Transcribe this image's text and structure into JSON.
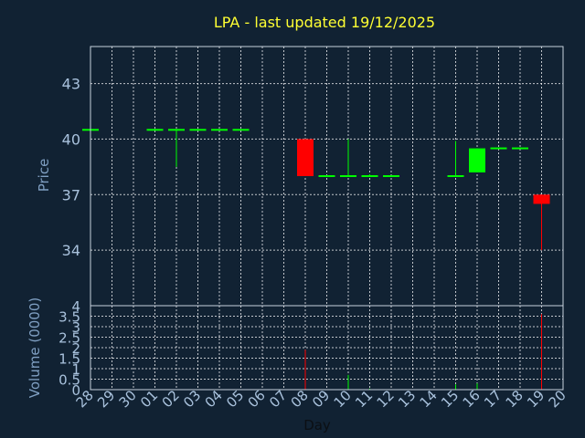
{
  "chart_data": {
    "type": "candlestick",
    "title": "LPA - last updated 19/12/2025",
    "price_panel": {
      "ylabel": "Price",
      "ylim": [
        31,
        45
      ],
      "yticks": [
        34,
        37,
        40,
        43
      ]
    },
    "volume_panel": {
      "ylabel": "Volume (0000)",
      "ylim": [
        0,
        4
      ],
      "yticks": [
        0,
        0.5,
        1,
        1.5,
        2,
        2.5,
        3,
        3.5,
        4
      ],
      "ytick_labels": [
        "0",
        "0.5",
        "1",
        "1.5",
        "2",
        "2.5",
        "3",
        "3.5",
        "4"
      ]
    },
    "xlabel": "Day",
    "x_labels": [
      "28",
      "29",
      "30",
      "01",
      "02",
      "03",
      "04",
      "05",
      "06",
      "07",
      "08",
      "09",
      "10",
      "11",
      "12",
      "13",
      "14",
      "15",
      "16",
      "17",
      "18",
      "19",
      "20"
    ],
    "colors": {
      "up": "#00ff00",
      "down": "#ff0000"
    },
    "candles": [
      {
        "day": "28",
        "open": 40.5,
        "high": 40.5,
        "low": 40.5,
        "close": 40.5,
        "volume": 0.0
      },
      {
        "day": "01",
        "open": 40.5,
        "high": 40.5,
        "low": 40.5,
        "close": 40.5,
        "volume": 0.0
      },
      {
        "day": "02",
        "open": 40.5,
        "high": 40.5,
        "low": 38.5,
        "close": 40.5,
        "volume": 0.0
      },
      {
        "day": "03",
        "open": 40.5,
        "high": 40.5,
        "low": 40.5,
        "close": 40.5,
        "volume": 0.0
      },
      {
        "day": "04",
        "open": 40.5,
        "high": 40.5,
        "low": 40.5,
        "close": 40.5,
        "volume": 0.0
      },
      {
        "day": "05",
        "open": 40.5,
        "high": 40.5,
        "low": 40.5,
        "close": 40.5,
        "volume": 0.0
      },
      {
        "day": "08",
        "open": 40.0,
        "high": 40.0,
        "low": 38.0,
        "close": 38.0,
        "volume": 1.9
      },
      {
        "day": "09",
        "open": 38.0,
        "high": 38.0,
        "low": 38.0,
        "close": 38.0,
        "volume": 0.0
      },
      {
        "day": "10",
        "open": 38.0,
        "high": 40.0,
        "low": 38.0,
        "close": 38.0,
        "volume": 0.7
      },
      {
        "day": "11",
        "open": 38.0,
        "high": 38.1,
        "low": 38.0,
        "close": 38.0,
        "volume": 0.05
      },
      {
        "day": "12",
        "open": 38.0,
        "high": 38.0,
        "low": 38.0,
        "close": 38.0,
        "volume": 0.0
      },
      {
        "day": "15",
        "open": 38.0,
        "high": 39.9,
        "low": 38.0,
        "close": 38.0,
        "volume": 0.25
      },
      {
        "day": "16",
        "open": 38.2,
        "high": 39.5,
        "low": 38.2,
        "close": 39.5,
        "volume": 0.3
      },
      {
        "day": "17",
        "open": 39.5,
        "high": 39.5,
        "low": 39.5,
        "close": 39.5,
        "volume": 0.0
      },
      {
        "day": "18",
        "open": 39.5,
        "high": 39.5,
        "low": 39.5,
        "close": 39.5,
        "volume": 0.0
      },
      {
        "day": "19",
        "open": 37.0,
        "high": 37.0,
        "low": 34.0,
        "close": 36.5,
        "volume": 3.6
      }
    ]
  }
}
